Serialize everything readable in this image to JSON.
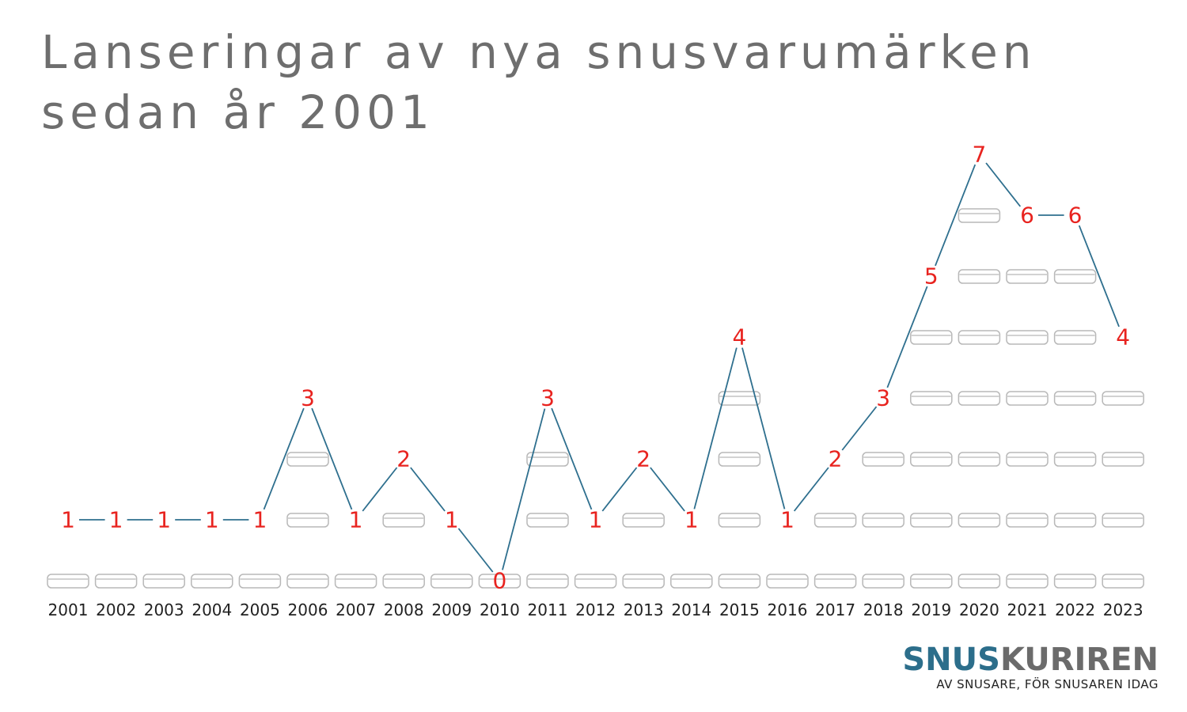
{
  "title": {
    "line1": "Lanseringar av nya snusvarumärken",
    "line2": "sedan år 2001"
  },
  "colors": {
    "line": "#2e6f8e",
    "value_label": "#e8231f",
    "can_stroke": "#b8b8b8",
    "title": "#6e6e6e",
    "logo_primary": "#2c6e8b",
    "logo_secondary": "#6b6b6b"
  },
  "chart_data": {
    "type": "line",
    "categories": [
      "2001",
      "2002",
      "2003",
      "2004",
      "2005",
      "2006",
      "2007",
      "2008",
      "2009",
      "2010",
      "2011",
      "2012",
      "2013",
      "2014",
      "2015",
      "2016",
      "2017",
      "2018",
      "2019",
      "2020",
      "2021",
      "2022",
      "2023"
    ],
    "values": [
      1,
      1,
      1,
      1,
      1,
      3,
      1,
      2,
      1,
      0,
      3,
      1,
      2,
      1,
      4,
      1,
      2,
      3,
      5,
      7,
      6,
      6,
      4
    ],
    "title": "Lanseringar av nya snusvarumärken sedan år 2001",
    "xlabel": "",
    "ylabel": "",
    "ylim": [
      0,
      7
    ],
    "grid": false,
    "legend": "none",
    "marker": "stacked snus cans (one per launch, base can per year)"
  },
  "logo": {
    "part1": "SNUS",
    "part2": "KURIREN",
    "tagline": "AV SNUSARE, FÖR SNUSAREN IDAG"
  }
}
